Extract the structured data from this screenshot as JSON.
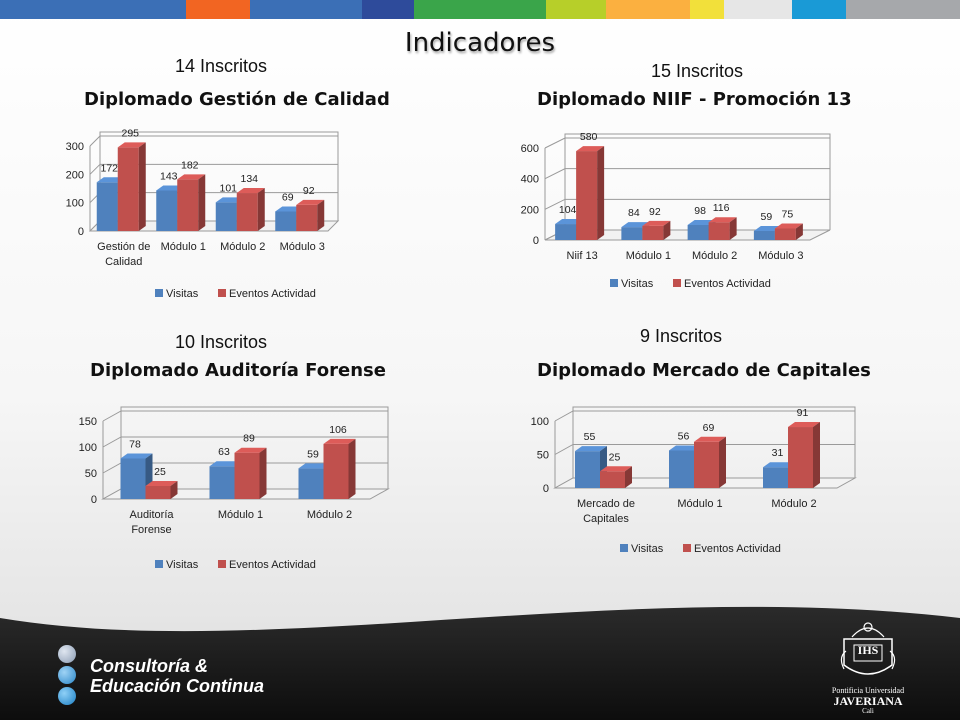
{
  "slide_title": "Indicadores",
  "topbar_colors": [
    "#3b6fb6",
    "#f26522",
    "#3b6fb6",
    "#2e4b9b",
    "#3aa54a",
    "#b7cf29",
    "#fbb040",
    "#f2e03a",
    "#e6e6e6",
    "#1a9ad6",
    "#a6a8ab"
  ],
  "legend": {
    "visitas": "Visitas",
    "eventos": "Eventos Actividad"
  },
  "colors": {
    "visitas": "#4f81bd",
    "eventos": "#c0504d"
  },
  "panels": [
    {
      "inscritos": "14 Inscritos",
      "title": "Diplomado Gestión de Calidad"
    },
    {
      "inscritos": "15 Inscritos",
      "title": "Diplomado NIIF - Promoción 13"
    },
    {
      "inscritos": "10 Inscritos",
      "title": "Diplomado Auditoría Forense"
    },
    {
      "inscritos": "9 Inscritos",
      "title": "Diplomado Mercado de Capitales"
    }
  ],
  "chart_data": [
    {
      "type": "bar",
      "categories": [
        "Gestión de Calidad",
        "Módulo 1",
        "Módulo 2",
        "Módulo 3"
      ],
      "series": [
        {
          "name": "Visitas",
          "values": [
            172,
            143,
            101,
            69
          ]
        },
        {
          "name": "Eventos Actividad",
          "values": [
            295,
            182,
            134,
            92
          ]
        }
      ],
      "ylim": [
        0,
        300
      ],
      "yticks": [
        0,
        100,
        200,
        300
      ],
      "legend": "bottom"
    },
    {
      "type": "bar",
      "categories": [
        "Niif 13",
        "Módulo 1",
        "Módulo 2",
        "Módulo 3"
      ],
      "series": [
        {
          "name": "Visitas",
          "values": [
            104,
            84,
            98,
            59
          ]
        },
        {
          "name": "Eventos Actividad",
          "values": [
            580,
            92,
            116,
            75
          ]
        }
      ],
      "ylim": [
        0,
        600
      ],
      "yticks": [
        0,
        200,
        400,
        600
      ],
      "legend": "bottom"
    },
    {
      "type": "bar",
      "categories": [
        "Auditoría Forense",
        "Módulo 1",
        "Módulo 2"
      ],
      "series": [
        {
          "name": "Visitas",
          "values": [
            78,
            63,
            59
          ]
        },
        {
          "name": "Eventos Actividad",
          "values": [
            25,
            89,
            106
          ]
        }
      ],
      "ylim": [
        0,
        150
      ],
      "yticks": [
        0,
        50,
        100,
        150
      ],
      "legend": "bottom"
    },
    {
      "type": "bar",
      "categories": [
        "Mercado de Capitales",
        "Módulo 1",
        "Módulo 2"
      ],
      "series": [
        {
          "name": "Visitas",
          "values": [
            55,
            56,
            31
          ]
        },
        {
          "name": "Eventos Actividad",
          "values": [
            25,
            69,
            91
          ]
        }
      ],
      "ylim": [
        0,
        100
      ],
      "yticks": [
        0,
        50,
        100
      ],
      "legend": "bottom"
    }
  ],
  "footer": {
    "brand_line1": "Consultoría &",
    "brand_line2": "Educación Continua",
    "logo_line1": "Pontificia Universidad",
    "logo_line2": "JAVERIANA",
    "logo_line3": "Cali",
    "logo_monogram": "IHS"
  }
}
